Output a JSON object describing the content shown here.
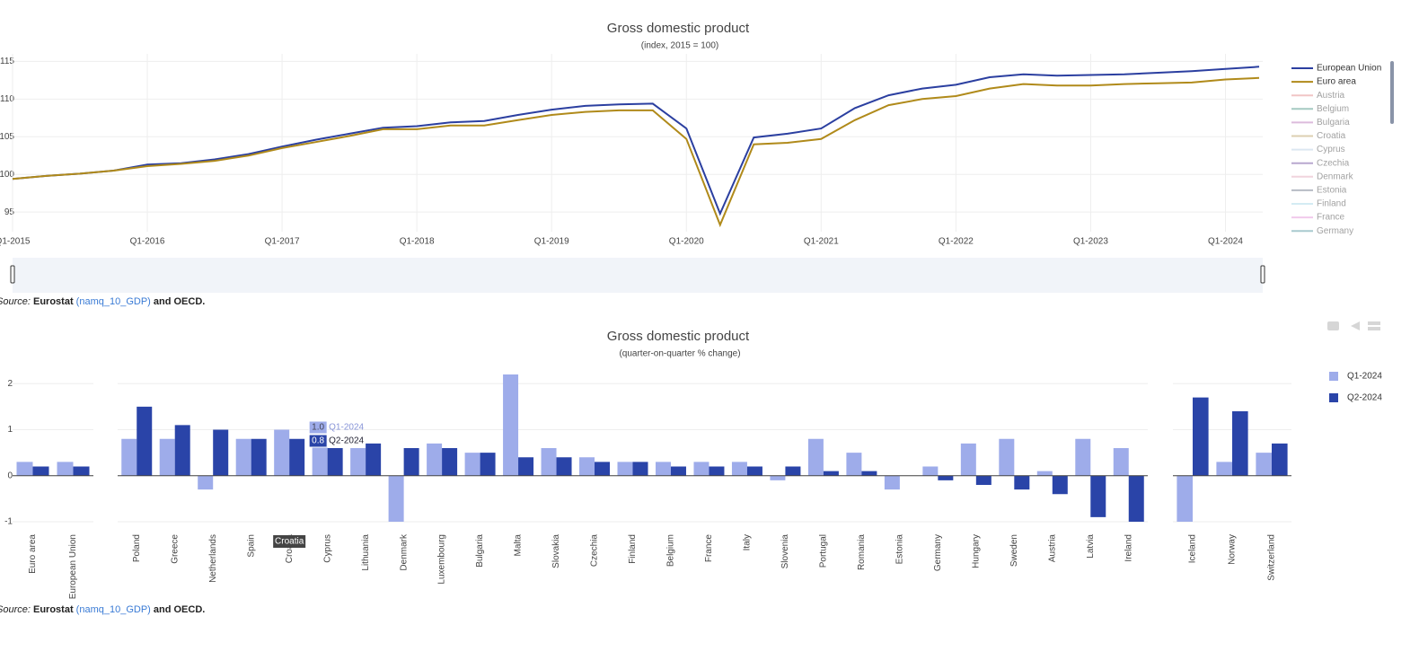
{
  "chart_data": [
    {
      "type": "line",
      "title": "Gross domestic product",
      "subtitle": "(index, 2015 = 100)",
      "categories": [
        "Q1-2015",
        null,
        null,
        null,
        "Q1-2016",
        null,
        null,
        null,
        "Q1-2017",
        null,
        null,
        null,
        "Q1-2018",
        null,
        null,
        null,
        "Q1-2019",
        null,
        null,
        null,
        "Q1-2020",
        null,
        null,
        null,
        "Q1-2021",
        null,
        null,
        null,
        "Q1-2022",
        null,
        null,
        null,
        "Q1-2023",
        null,
        null,
        null,
        "Q1-2024",
        null
      ],
      "series": [
        {
          "name": "European Union",
          "color": "#2b3fa0",
          "values": [
            99.4,
            99.8,
            100.1,
            100.5,
            101.3,
            101.5,
            102.0,
            102.7,
            103.7,
            104.6,
            105.4,
            106.2,
            106.4,
            106.9,
            107.1,
            107.9,
            108.6,
            109.1,
            109.3,
            109.4,
            106.1,
            94.8,
            104.9,
            105.4,
            106.1,
            108.8,
            110.5,
            111.4,
            111.9,
            112.9,
            113.3,
            113.1,
            113.2,
            113.3,
            113.5,
            113.7,
            114.0,
            114.3
          ]
        },
        {
          "name": "Euro area",
          "color": "#b08a1a",
          "values": [
            99.4,
            99.8,
            100.1,
            100.5,
            101.1,
            101.4,
            101.8,
            102.5,
            103.5,
            104.3,
            105.1,
            106.0,
            106.0,
            106.5,
            106.5,
            107.2,
            107.9,
            108.3,
            108.5,
            108.5,
            104.7,
            93.3,
            104.0,
            104.2,
            104.7,
            107.2,
            109.2,
            110.0,
            110.4,
            111.4,
            112.0,
            111.8,
            111.8,
            112.0,
            112.1,
            112.2,
            112.6,
            112.8
          ]
        }
      ],
      "legend_hidden": [
        {
          "name": "Austria",
          "color": "#e8a0a0"
        },
        {
          "name": "Belgium",
          "color": "#6aa89a"
        },
        {
          "name": "Bulgaria",
          "color": "#c58fc5"
        },
        {
          "name": "Croatia",
          "color": "#c8b080"
        },
        {
          "name": "Cyprus",
          "color": "#c5d8e8"
        },
        {
          "name": "Czechia",
          "color": "#8a70b0"
        },
        {
          "name": "Denmark",
          "color": "#e8b8c8"
        },
        {
          "name": "Estonia",
          "color": "#8890a0"
        },
        {
          "name": "Finland",
          "color": "#b8e0ec"
        },
        {
          "name": "France",
          "color": "#e8a8e0"
        },
        {
          "name": "Germany",
          "color": "#70a8b0"
        }
      ],
      "ylim": [
        92.4,
        116
      ],
      "yticks": [
        95,
        100,
        105,
        110,
        115
      ],
      "grid": true
    },
    {
      "type": "bar",
      "title": "Gross domestic product",
      "subtitle": "(quarter-on-quarter % change)",
      "categories": [
        "Euro area",
        "European Union",
        "Poland",
        "Greece",
        "Netherlands",
        "Spain",
        "Croatia",
        "Cyprus",
        "Lithuania",
        "Denmark",
        "Luxembourg",
        "Bulgaria",
        "Malta",
        "Slovakia",
        "Czechia",
        "Finland",
        "Belgium",
        "France",
        "Italy",
        "Slovenia",
        "Portugal",
        "Romania",
        "Estonia",
        "Germany",
        "Hungary",
        "Sweden",
        "Austria",
        "Latvia",
        "Ireland",
        "Iceland",
        "Norway",
        "Switzerland"
      ],
      "series": [
        {
          "name": "Q1-2024",
          "color": "#9eacea",
          "values": [
            0.3,
            0.3,
            0.8,
            0.8,
            -0.3,
            0.8,
            1.0,
            0.8,
            0.6,
            -1.0,
            0.7,
            0.5,
            2.2,
            0.6,
            0.4,
            0.3,
            0.3,
            0.3,
            0.3,
            -0.1,
            0.8,
            0.5,
            -0.3,
            0.2,
            0.7,
            0.8,
            0.1,
            0.8,
            0.6,
            -1.0,
            0.3,
            0.5
          ]
        },
        {
          "name": "Q2-2024",
          "color": "#2a44a8",
          "values": [
            0.2,
            0.2,
            1.5,
            1.1,
            1.0,
            0.8,
            0.8,
            0.6,
            0.7,
            0.6,
            0.6,
            0.5,
            0.4,
            0.4,
            0.3,
            0.3,
            0.2,
            0.2,
            0.2,
            0.2,
            0.1,
            0.1,
            0.0,
            -0.1,
            -0.2,
            -0.3,
            -0.4,
            -0.9,
            -1.0,
            1.7,
            1.4,
            0.7
          ]
        }
      ],
      "tooltip": {
        "title": "Croatia",
        "items": [
          {
            "value": "1.0",
            "series": "Q1-2024"
          },
          {
            "value": "0.8",
            "series": "Q2-2024"
          }
        ]
      },
      "ylim": [
        -1,
        2.2
      ],
      "yticks": [
        -1,
        0,
        1,
        2
      ],
      "grid": true
    }
  ],
  "source": {
    "label": "Source:",
    "publisher": "Eurostat",
    "link": "(namq_10_GDP)",
    "rest": "and OECD."
  }
}
